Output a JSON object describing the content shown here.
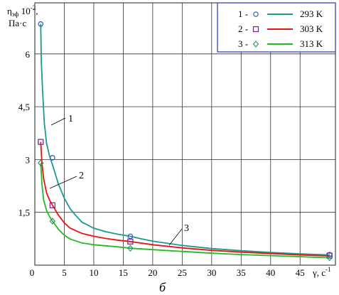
{
  "chart_data": {
    "type": "line",
    "ylabel_line1": "η",
    "ylabel_sub": "эф",
    "ylabel_line1_rest": " 10",
    "ylabel_exp": "-2",
    "ylabel_comma": ",",
    "ylabel_line2": "Па·с",
    "xlabel": "γ, с",
    "xlabel_exp": "-1",
    "caption": "б",
    "xlim": [
      0,
      51
    ],
    "ylim": [
      0,
      7.45
    ],
    "x_ticks": [
      0,
      5,
      10,
      15,
      20,
      25,
      30,
      35,
      40,
      45
    ],
    "x_tick_labels": [
      "0",
      "5",
      "10",
      "15",
      "20",
      "25",
      "30",
      "35",
      "40",
      "45"
    ],
    "y_ticks": [
      1.5,
      3,
      4.5,
      6
    ],
    "y_tick_labels": [
      "1,5",
      "3",
      "4,5",
      "6"
    ],
    "grid": true,
    "legend_position": "top-right",
    "series": [
      {
        "name": "293 K",
        "legend_number": "1 -",
        "marker": "circle",
        "color": "#1a9a8e",
        "curve_label": "1",
        "x": [
          1.0,
          1.1,
          1.3,
          1.6,
          2.0,
          2.5,
          3.0,
          4.0,
          5.0,
          6.0,
          7.0,
          8.0,
          10.0,
          12.0,
          14.0,
          16.2,
          18,
          20,
          25,
          30,
          35,
          40,
          45,
          50
        ],
        "y": [
          6.85,
          5.8,
          5.0,
          4.05,
          3.45,
          3.1,
          2.85,
          2.3,
          1.9,
          1.6,
          1.4,
          1.22,
          1.05,
          0.95,
          0.88,
          0.82,
          0.75,
          0.68,
          0.56,
          0.47,
          0.41,
          0.36,
          0.32,
          0.29
        ],
        "points_x": [
          1.0,
          3.0,
          16.2,
          50
        ],
        "points_y": [
          6.85,
          3.05,
          0.82,
          0.3
        ]
      },
      {
        "name": "303 K",
        "legend_number": "2 -",
        "marker": "square",
        "color": "#ee1111",
        "curve_label": "2",
        "x": [
          1.0,
          1.2,
          1.5,
          2.0,
          2.5,
          3.0,
          4.0,
          5.0,
          6.0,
          8.0,
          10.0,
          12.0,
          14.0,
          16.2,
          20,
          25,
          30,
          35,
          40,
          45,
          50
        ],
        "y": [
          3.5,
          2.9,
          2.45,
          2.05,
          1.85,
          1.7,
          1.42,
          1.2,
          1.05,
          0.9,
          0.82,
          0.76,
          0.71,
          0.67,
          0.58,
          0.49,
          0.42,
          0.37,
          0.33,
          0.29,
          0.26
        ],
        "points_x": [
          1.0,
          3.0,
          16.2,
          50
        ],
        "points_y": [
          3.5,
          1.7,
          0.67,
          0.27
        ]
      },
      {
        "name": "313 K",
        "legend_number": "3 -",
        "marker": "diamond",
        "color": "#22bb22",
        "curve_label": "3",
        "x": [
          1.0,
          1.2,
          1.5,
          2.0,
          2.5,
          3.0,
          4.0,
          5.0,
          6.0,
          8.0,
          10.0,
          12.0,
          14.0,
          16.2,
          20,
          25,
          30,
          35,
          40,
          45,
          50
        ],
        "y": [
          2.9,
          2.3,
          1.85,
          1.55,
          1.38,
          1.25,
          1.02,
          0.85,
          0.74,
          0.63,
          0.58,
          0.55,
          0.52,
          0.48,
          0.44,
          0.39,
          0.34,
          0.3,
          0.27,
          0.24,
          0.21
        ],
        "points_x": [
          1.0,
          3.0,
          16.2,
          50
        ],
        "points_y": [
          2.9,
          1.25,
          0.48,
          0.21
        ]
      }
    ]
  }
}
